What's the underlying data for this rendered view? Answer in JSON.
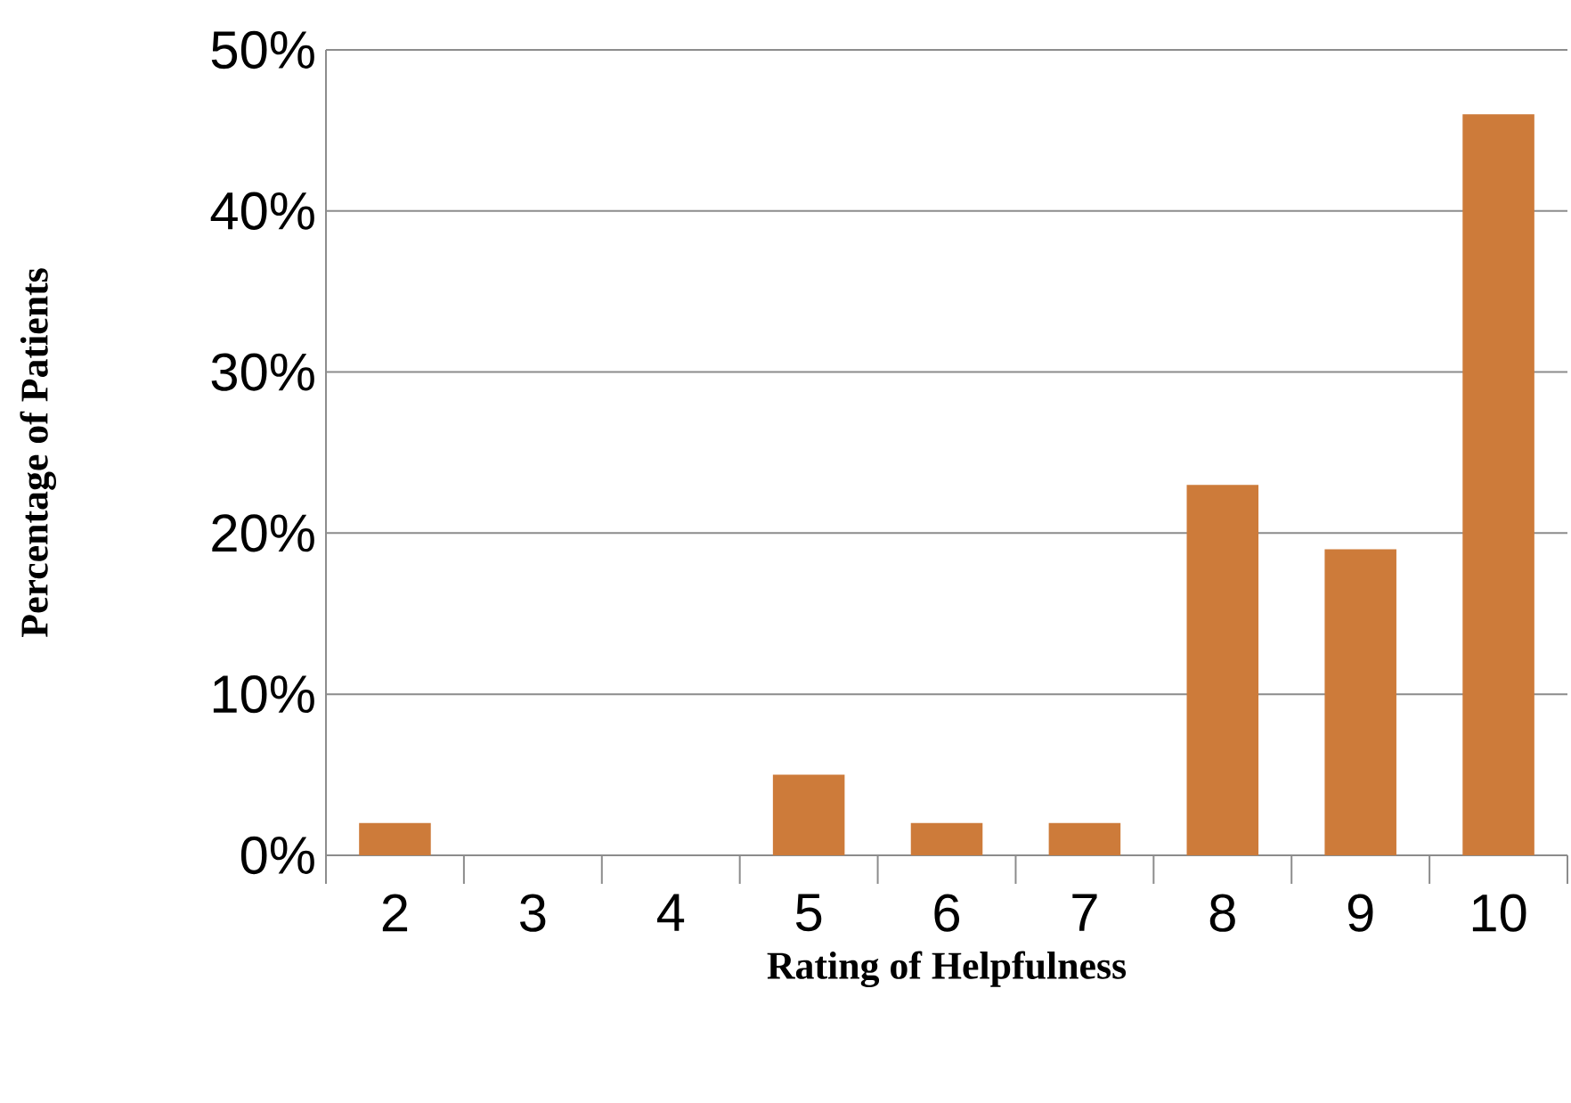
{
  "chart_data": {
    "type": "bar",
    "xlabel": "Rating of Helpfulness",
    "ylabel": "Percentage of Patients",
    "categories": [
      "2",
      "3",
      "4",
      "5",
      "6",
      "7",
      "8",
      "9",
      "10"
    ],
    "values": [
      2,
      0,
      0,
      5,
      2,
      2,
      23,
      19,
      46
    ],
    "color": "#cd7b3a",
    "ylim": [
      0,
      50
    ],
    "yticks": [
      {
        "value": 0,
        "label": "0%"
      },
      {
        "value": 10,
        "label": "10%"
      },
      {
        "value": 20,
        "label": "20%"
      },
      {
        "value": 30,
        "label": "30%"
      },
      {
        "value": 40,
        "label": "40%"
      },
      {
        "value": 50,
        "label": "50%"
      }
    ],
    "grid": "y"
  }
}
